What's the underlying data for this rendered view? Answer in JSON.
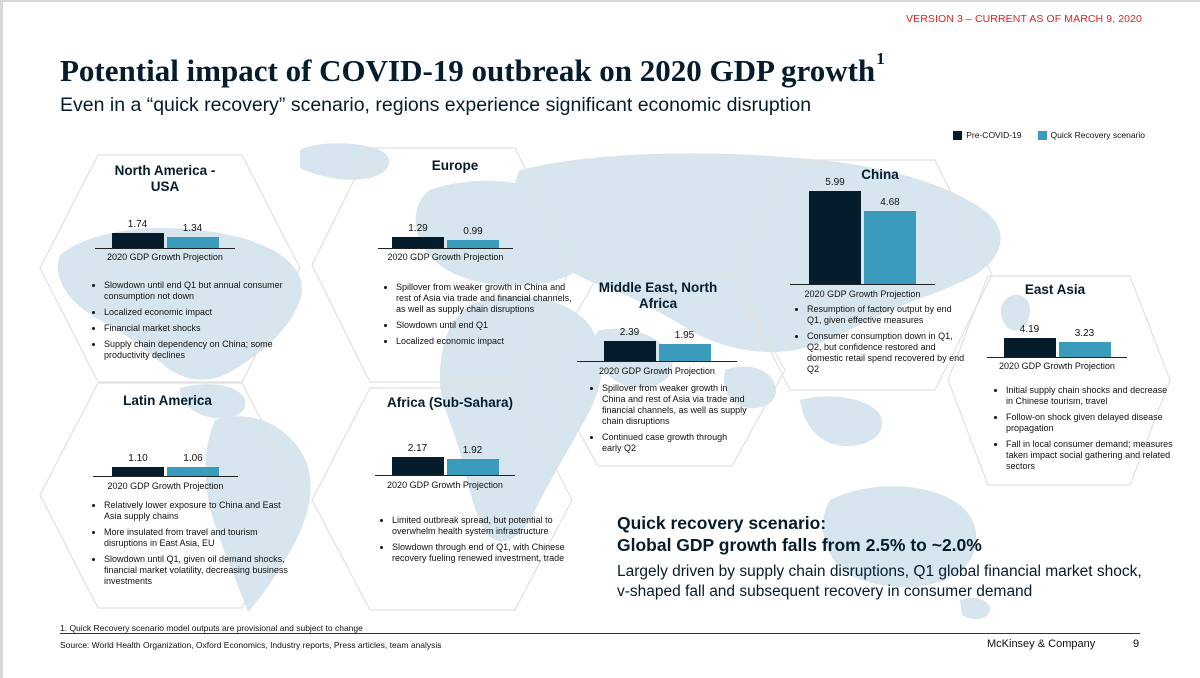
{
  "header": {
    "version": "VERSION 3 – CURRENT AS OF MARCH 9, 2020",
    "title": "Potential impact of COVID-19 outbreak on 2020 GDP growth",
    "title_footnote_mark": "1",
    "subtitle": "Even in a “quick recovery” scenario, regions experience significant economic disruption"
  },
  "legend": {
    "pre_label": "Pre-COVID-19",
    "quick_label": "Quick Recovery scenario"
  },
  "colors": {
    "pre": "#051c2c",
    "quick": "#3b9bbd",
    "map": "#d4e3ec",
    "hex": "#e3e3e3"
  },
  "caption": "2020 GDP Growth Projection",
  "chart_data": [
    {
      "type": "bar",
      "title": "North America - USA",
      "categories": [
        "Pre-COVID-19",
        "Quick Recovery scenario"
      ],
      "values": [
        1.74,
        1.34
      ]
    },
    {
      "type": "bar",
      "title": "Europe",
      "categories": [
        "Pre-COVID-19",
        "Quick Recovery scenario"
      ],
      "values": [
        1.29,
        0.99
      ]
    },
    {
      "type": "bar",
      "title": "Middle East, North Africa",
      "categories": [
        "Pre-COVID-19",
        "Quick Recovery scenario"
      ],
      "values": [
        2.39,
        1.95
      ]
    },
    {
      "type": "bar",
      "title": "China",
      "categories": [
        "Pre-COVID-19",
        "Quick Recovery scenario"
      ],
      "values": [
        5.99,
        4.68
      ]
    },
    {
      "type": "bar",
      "title": "East Asia",
      "categories": [
        "Pre-COVID-19",
        "Quick Recovery scenario"
      ],
      "values": [
        4.19,
        3.23
      ]
    },
    {
      "type": "bar",
      "title": "Latin America",
      "categories": [
        "Pre-COVID-19",
        "Quick Recovery scenario"
      ],
      "values": [
        1.1,
        1.06
      ]
    },
    {
      "type": "bar",
      "title": "Africa (Sub-Sahara)",
      "categories": [
        "Pre-COVID-19",
        "Quick Recovery scenario"
      ],
      "values": [
        2.17,
        1.92
      ]
    }
  ],
  "regions": {
    "north_america": {
      "name": "North America -\nUSA",
      "bullets": [
        "Slowdown until end Q1 but annual consumer consumption not down",
        "Localized economic impact",
        "Financial market shocks",
        "Supply chain dependency on China; some productivity declines"
      ]
    },
    "europe": {
      "name": "Europe",
      "bullets": [
        "Spillover from weaker growth in China and rest of Asia via trade and financial channels, as well as supply chain disruptions",
        "Slowdown until end Q1",
        "Localized economic impact"
      ]
    },
    "mena": {
      "name": "Middle East, North\nAfrica",
      "bullets": [
        "Spillover from weaker growth in China and rest of Asia via trade and financial channels, as well as supply chain disruptions",
        "Continued case growth through early Q2"
      ]
    },
    "china": {
      "name": "China",
      "bullets": [
        "Resumption of factory output by end Q1, given effective measures",
        "Consumer consumption down in Q1, Q2, but confidence restored and domestic retail spend recovered by end Q2"
      ]
    },
    "east_asia": {
      "name": "East Asia",
      "bullets": [
        "Initial supply chain shocks and decrease in Chinese tourism, travel",
        "Follow-on shock given delayed disease propagation",
        "Fall in local consumer demand; measures taken impact social gathering and related sectors"
      ]
    },
    "latin_america": {
      "name": "Latin America",
      "bullets": [
        "Relatively lower exposure to China and East Asia supply chains",
        "More insulated from travel and tourism disruptions in East Asia, EU",
        "Slowdown until Q1, given oil demand shocks, financial market volatility, decreasing business investments"
      ]
    },
    "africa": {
      "name": "Africa (Sub-Sahara)",
      "bullets": [
        "Limited outbreak spread, but potential to overwhelm health system infrastructure",
        "Slowdown through end of Q1, with Chinese recovery fueling renewed investment, trade"
      ]
    }
  },
  "scenario": {
    "heading_line1": "Quick recovery scenario:",
    "heading_line2": "Global GDP growth falls from 2.5% to ~2.0%",
    "body": "Largely driven by supply chain disruptions, Q1 global financial market shock, v-shaped fall and subsequent recovery in consumer demand"
  },
  "footer": {
    "footnote": "1.   Quick Recovery scenario model outputs are provisional and subject to change",
    "source": "Source: World Health Organization, Oxford Economics, Industry reports, Press articles, team analysis",
    "brand": "McKinsey & Company",
    "page": "9"
  }
}
